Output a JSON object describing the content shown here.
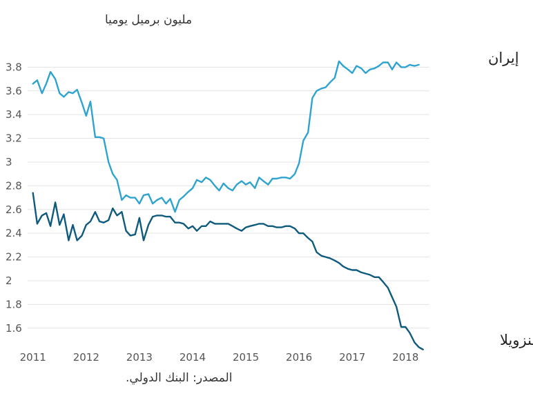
{
  "chart_data": {
    "type": "line",
    "ylabel": "مليون برميل يوميا",
    "source": "المصدر: البنك الدولي.",
    "ylim": [
      1.43,
      3.93
    ],
    "xlim": [
      2010.9,
      2018.45
    ],
    "yticks": [
      "3.8",
      "3.6",
      "3.4",
      "3.2",
      "3",
      "2.8",
      "2.6",
      "2.4",
      "2.2",
      "2",
      "1.8",
      "1.6"
    ],
    "xticks": [
      "2011",
      "2012",
      "2013",
      "2014",
      "2015",
      "2016",
      "2017",
      "2018"
    ],
    "grid": true,
    "series": [
      {
        "name": "إيران",
        "color": "#2ea3cf",
        "x": [
          2011.0,
          2011.08,
          2011.17,
          2011.25,
          2011.33,
          2011.42,
          2011.5,
          2011.58,
          2011.67,
          2011.75,
          2011.83,
          2011.92,
          2012.0,
          2012.08,
          2012.17,
          2012.25,
          2012.33,
          2012.42,
          2012.5,
          2012.58,
          2012.67,
          2012.75,
          2012.83,
          2012.92,
          2013.0,
          2013.08,
          2013.17,
          2013.25,
          2013.33,
          2013.42,
          2013.5,
          2013.58,
          2013.67,
          2013.75,
          2013.83,
          2013.92,
          2014.0,
          2014.08,
          2014.17,
          2014.25,
          2014.33,
          2014.42,
          2014.5,
          2014.58,
          2014.67,
          2014.75,
          2014.83,
          2014.92,
          2015.0,
          2015.08,
          2015.17,
          2015.25,
          2015.33,
          2015.42,
          2015.5,
          2015.58,
          2015.67,
          2015.75,
          2015.83,
          2015.92,
          2016.0,
          2016.08,
          2016.17,
          2016.25,
          2016.33,
          2016.42,
          2016.5,
          2016.58,
          2016.67,
          2016.75,
          2016.83,
          2016.92,
          2017.0,
          2017.08,
          2017.17,
          2017.25,
          2017.33,
          2017.42,
          2017.5,
          2017.58,
          2017.67,
          2017.75,
          2017.83,
          2017.92,
          2018.0,
          2018.08,
          2018.17,
          2018.25
        ],
        "values": [
          3.66,
          3.69,
          3.58,
          3.66,
          3.76,
          3.7,
          3.58,
          3.55,
          3.59,
          3.58,
          3.61,
          3.5,
          3.39,
          3.51,
          3.21,
          3.21,
          3.2,
          3.0,
          2.9,
          2.85,
          2.68,
          2.72,
          2.7,
          2.7,
          2.65,
          2.72,
          2.73,
          2.65,
          2.68,
          2.7,
          2.65,
          2.69,
          2.58,
          2.68,
          2.71,
          2.75,
          2.78,
          2.85,
          2.83,
          2.87,
          2.85,
          2.8,
          2.76,
          2.82,
          2.78,
          2.76,
          2.81,
          2.84,
          2.81,
          2.83,
          2.78,
          2.87,
          2.84,
          2.81,
          2.86,
          2.86,
          2.87,
          2.87,
          2.86,
          2.9,
          2.99,
          3.18,
          3.25,
          3.54,
          3.6,
          3.62,
          3.63,
          3.67,
          3.71,
          3.85,
          3.81,
          3.78,
          3.75,
          3.81,
          3.79,
          3.75,
          3.78,
          3.79,
          3.81,
          3.84,
          3.84,
          3.78,
          3.84,
          3.8,
          3.8,
          3.82,
          3.81,
          3.82
        ]
      },
      {
        "name": "فنزويلا",
        "color": "#0e5a7e",
        "x": [
          2011.0,
          2011.08,
          2011.17,
          2011.25,
          2011.33,
          2011.42,
          2011.5,
          2011.58,
          2011.67,
          2011.75,
          2011.83,
          2011.92,
          2012.0,
          2012.08,
          2012.17,
          2012.25,
          2012.33,
          2012.42,
          2012.5,
          2012.58,
          2012.67,
          2012.75,
          2012.83,
          2012.92,
          2013.0,
          2013.08,
          2013.17,
          2013.25,
          2013.33,
          2013.42,
          2013.5,
          2013.58,
          2013.67,
          2013.75,
          2013.83,
          2013.92,
          2014.0,
          2014.08,
          2014.17,
          2014.25,
          2014.33,
          2014.42,
          2014.5,
          2014.58,
          2014.67,
          2014.75,
          2014.83,
          2014.92,
          2015.0,
          2015.08,
          2015.17,
          2015.25,
          2015.33,
          2015.42,
          2015.5,
          2015.58,
          2015.67,
          2015.75,
          2015.83,
          2015.92,
          2016.0,
          2016.08,
          2016.17,
          2016.25,
          2016.33,
          2016.42,
          2016.5,
          2016.58,
          2016.67,
          2016.75,
          2016.83,
          2016.92,
          2017.0,
          2017.08,
          2017.17,
          2017.25,
          2017.33,
          2017.42,
          2017.5,
          2017.58,
          2017.67,
          2017.75,
          2017.83,
          2017.92,
          2018.0,
          2018.08,
          2018.17,
          2018.25,
          2018.33
        ],
        "values": [
          2.74,
          2.48,
          2.55,
          2.57,
          2.46,
          2.66,
          2.47,
          2.56,
          2.34,
          2.47,
          2.34,
          2.38,
          2.47,
          2.5,
          2.58,
          2.5,
          2.49,
          2.51,
          2.61,
          2.55,
          2.58,
          2.42,
          2.38,
          2.39,
          2.53,
          2.34,
          2.47,
          2.54,
          2.55,
          2.55,
          2.54,
          2.54,
          2.49,
          2.49,
          2.48,
          2.44,
          2.46,
          2.42,
          2.46,
          2.46,
          2.5,
          2.48,
          2.48,
          2.48,
          2.48,
          2.46,
          2.44,
          2.42,
          2.45,
          2.46,
          2.47,
          2.48,
          2.48,
          2.46,
          2.46,
          2.45,
          2.45,
          2.46,
          2.46,
          2.44,
          2.4,
          2.4,
          2.36,
          2.33,
          2.24,
          2.21,
          2.2,
          2.19,
          2.17,
          2.15,
          2.12,
          2.1,
          2.09,
          2.09,
          2.07,
          2.06,
          2.05,
          2.03,
          2.03,
          1.99,
          1.94,
          1.86,
          1.78,
          1.61,
          1.61,
          1.56,
          1.48,
          1.44,
          1.42
        ]
      }
    ]
  }
}
